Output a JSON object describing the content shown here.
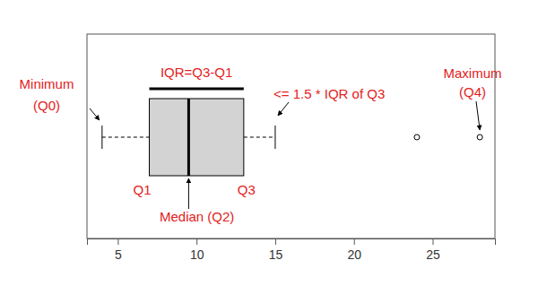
{
  "chart_data": {
    "type": "box",
    "orientation": "horizontal",
    "color": "#d3d3d3",
    "box": {
      "min": 4,
      "q1": 7,
      "median": 9.5,
      "q3": 13,
      "max": 15
    },
    "outliers": [
      24,
      28
    ],
    "xlim": [
      3.04,
      28.96
    ],
    "xticks": [
      5,
      10,
      15,
      20,
      25
    ],
    "annotations": [
      "Minimum",
      "(Q0)",
      "IQR=Q3-Q1",
      "<= 1.5 * IQR of Q3",
      "Maximum",
      "(Q4)",
      "Q1",
      "Q3",
      "Median (Q2)"
    ]
  }
}
